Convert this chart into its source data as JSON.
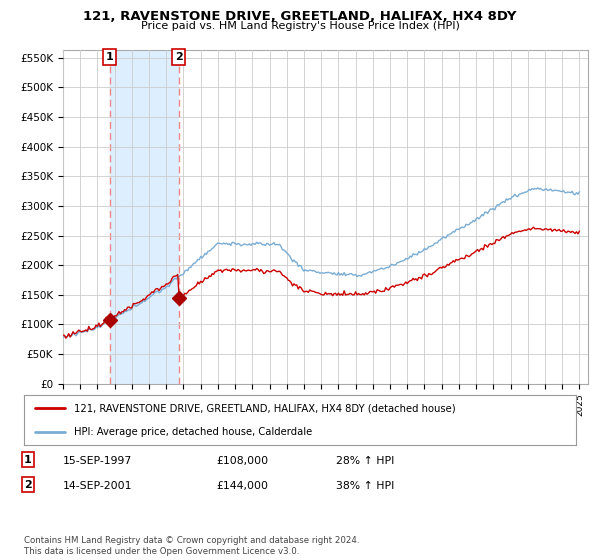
{
  "title": "121, RAVENSTONE DRIVE, GREETLAND, HALIFAX, HX4 8DY",
  "subtitle": "Price paid vs. HM Land Registry's House Price Index (HPI)",
  "ylabel_ticks": [
    "£0",
    "£50K",
    "£100K",
    "£150K",
    "£200K",
    "£250K",
    "£300K",
    "£350K",
    "£400K",
    "£450K",
    "£500K",
    "£550K"
  ],
  "ytick_values": [
    0,
    50000,
    100000,
    150000,
    200000,
    250000,
    300000,
    350000,
    400000,
    450000,
    500000,
    550000
  ],
  "sale1_date": 1997.71,
  "sale1_price": 108000,
  "sale2_date": 2001.71,
  "sale2_price": 144000,
  "sale1_text": "15-SEP-1997",
  "sale1_amount": "£108,000",
  "sale1_hpi": "28% ↑ HPI",
  "sale2_text": "14-SEP-2001",
  "sale2_amount": "£144,000",
  "sale2_hpi": "38% ↑ HPI",
  "legend_line1": "121, RAVENSTONE DRIVE, GREETLAND, HALIFAX, HX4 8DY (detached house)",
  "legend_line2": "HPI: Average price, detached house, Calderdale",
  "footer": "Contains HM Land Registry data © Crown copyright and database right 2024.\nThis data is licensed under the Open Government Licence v3.0.",
  "hpi_color": "#7aadd4",
  "price_color": "#cc0000",
  "marker_color": "#aa0000",
  "dashed_color": "#ee8888",
  "shade_color": "#ddeeff",
  "xmin": 1995.0,
  "xmax": 2025.5,
  "ymin": 0,
  "ymax": 562500,
  "future_start": 2024.5
}
